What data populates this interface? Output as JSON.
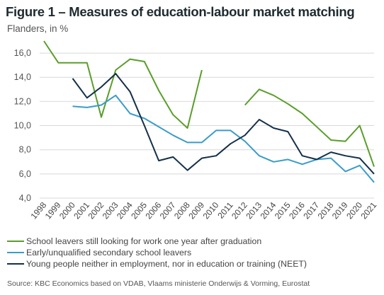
{
  "chart_data": {
    "type": "line",
    "title": "Figure 1 – Measures of education-labour market matching",
    "subtitle": "Flanders, in %",
    "x": [
      "1998",
      "1999",
      "2000",
      "2001",
      "2002",
      "2003",
      "2004",
      "2005",
      "2006",
      "2007",
      "2008",
      "2009",
      "2010",
      "2011",
      "2012",
      "2013",
      "2014",
      "2015",
      "2016",
      "2017",
      "2018",
      "2019",
      "2020",
      "2021"
    ],
    "y_ticks": [
      "4,0",
      "6,0",
      "8,0",
      "10,0",
      "12,0",
      "14,0",
      "16,0"
    ],
    "ylim": [
      4,
      17
    ],
    "grid": "horizontal",
    "legend_position": "bottom",
    "series": [
      {
        "name": "School leavers still looking for work one year after graduation",
        "color": "#5a9e2a",
        "values": [
          17.0,
          15.2,
          15.2,
          15.2,
          10.7,
          14.6,
          15.5,
          15.3,
          12.9,
          10.9,
          9.8,
          14.6,
          null,
          null,
          11.7,
          13.0,
          12.5,
          11.8,
          11.0,
          9.9,
          8.8,
          8.7,
          10.0,
          6.6
        ]
      },
      {
        "name": "Early/unqualified secondary school leavers",
        "color": "#3a9cc9",
        "values": [
          null,
          null,
          11.6,
          11.5,
          11.7,
          12.5,
          11.0,
          10.6,
          9.9,
          9.2,
          8.6,
          8.6,
          9.6,
          9.6,
          8.7,
          7.5,
          7.0,
          7.2,
          6.8,
          7.2,
          7.3,
          6.2,
          6.7,
          5.3
        ]
      },
      {
        "name": "Young people neither in employment, nor in education or training (NEET)",
        "color": "#14304a",
        "values": [
          null,
          null,
          13.9,
          12.3,
          13.2,
          14.3,
          12.8,
          10.0,
          7.1,
          7.4,
          6.3,
          7.3,
          7.5,
          8.5,
          9.2,
          10.5,
          9.8,
          9.5,
          7.5,
          7.2,
          7.8,
          7.5,
          7.3,
          6.0
        ]
      }
    ],
    "source": "Source: KBC Economics based on VDAB, Vlaams ministerie Onderwijs & Vorming, Eurostat"
  }
}
